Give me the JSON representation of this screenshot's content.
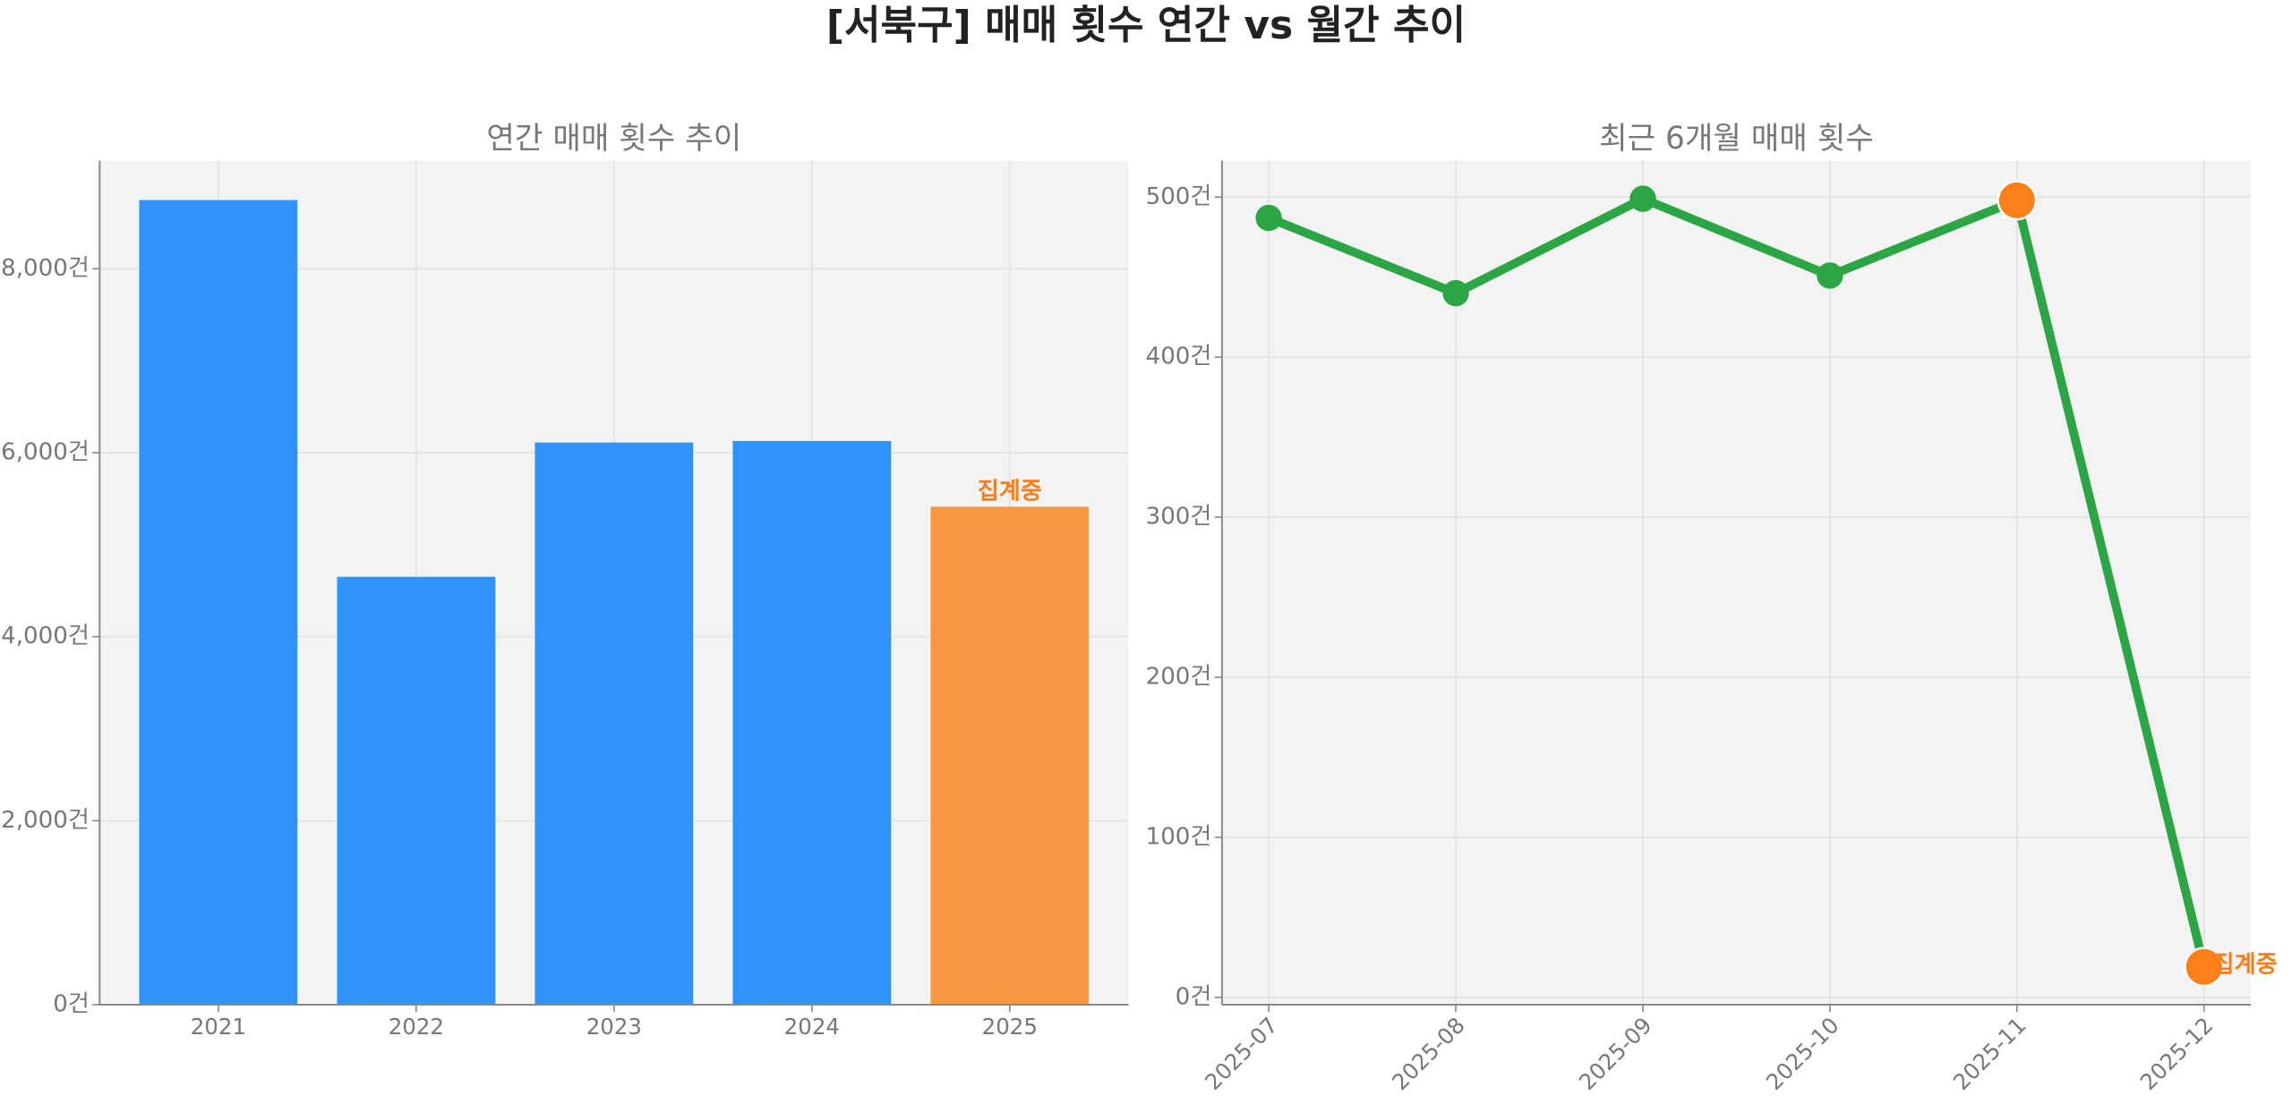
{
  "title": "[서북구] 매매 횟수 연간 vs 월간 추이",
  "chart_data": [
    {
      "type": "bar",
      "title": "연간 매매 횟수 추이",
      "categories": [
        "2021",
        "2022",
        "2023",
        "2024",
        "2025"
      ],
      "values": [
        8746,
        4651,
        6111,
        6127,
        5413
      ],
      "colors": [
        "#3093fb",
        "#3093fb",
        "#3093fb",
        "#3093fb",
        "#f99740"
      ],
      "ylim": [
        0,
        9175
      ],
      "yticks": [
        {
          "value": 0,
          "label": "0건"
        },
        {
          "value": 2000,
          "label": "2,000건"
        },
        {
          "value": 4000,
          "label": "4,000건"
        },
        {
          "value": 6000,
          "label": "6,000건"
        },
        {
          "value": 8000,
          "label": "8,000건"
        }
      ],
      "grid": true,
      "annotations": [
        {
          "text": "집계중",
          "x": "2025",
          "color": "#fa7d17"
        }
      ]
    },
    {
      "type": "line",
      "title": "최근 6개월 매매 횟수",
      "categories": [
        "2025-07",
        "2025-08",
        "2025-09",
        "2025-10",
        "2025-11",
        "2025-12"
      ],
      "series": [
        {
          "color": "#2ca645",
          "values": [
            487,
            440,
            499,
            451,
            498,
            19
          ],
          "marker_colors": [
            "#2ca645",
            "#2ca645",
            "#2ca645",
            "#2ca645",
            "#fd7f17",
            "#fd7f17"
          ]
        }
      ],
      "ylim": [
        -4.6,
        522.8
      ],
      "yticks": [
        {
          "value": 0,
          "label": "0건"
        },
        {
          "value": 100,
          "label": "100건"
        },
        {
          "value": 200,
          "label": "200건"
        },
        {
          "value": 300,
          "label": "300건"
        },
        {
          "value": 400,
          "label": "400건"
        },
        {
          "value": 500,
          "label": "500건"
        }
      ],
      "grid": true,
      "annotations": [
        {
          "text": "집계중",
          "x": "2025-12",
          "color": "#fa7d17"
        }
      ]
    }
  ]
}
